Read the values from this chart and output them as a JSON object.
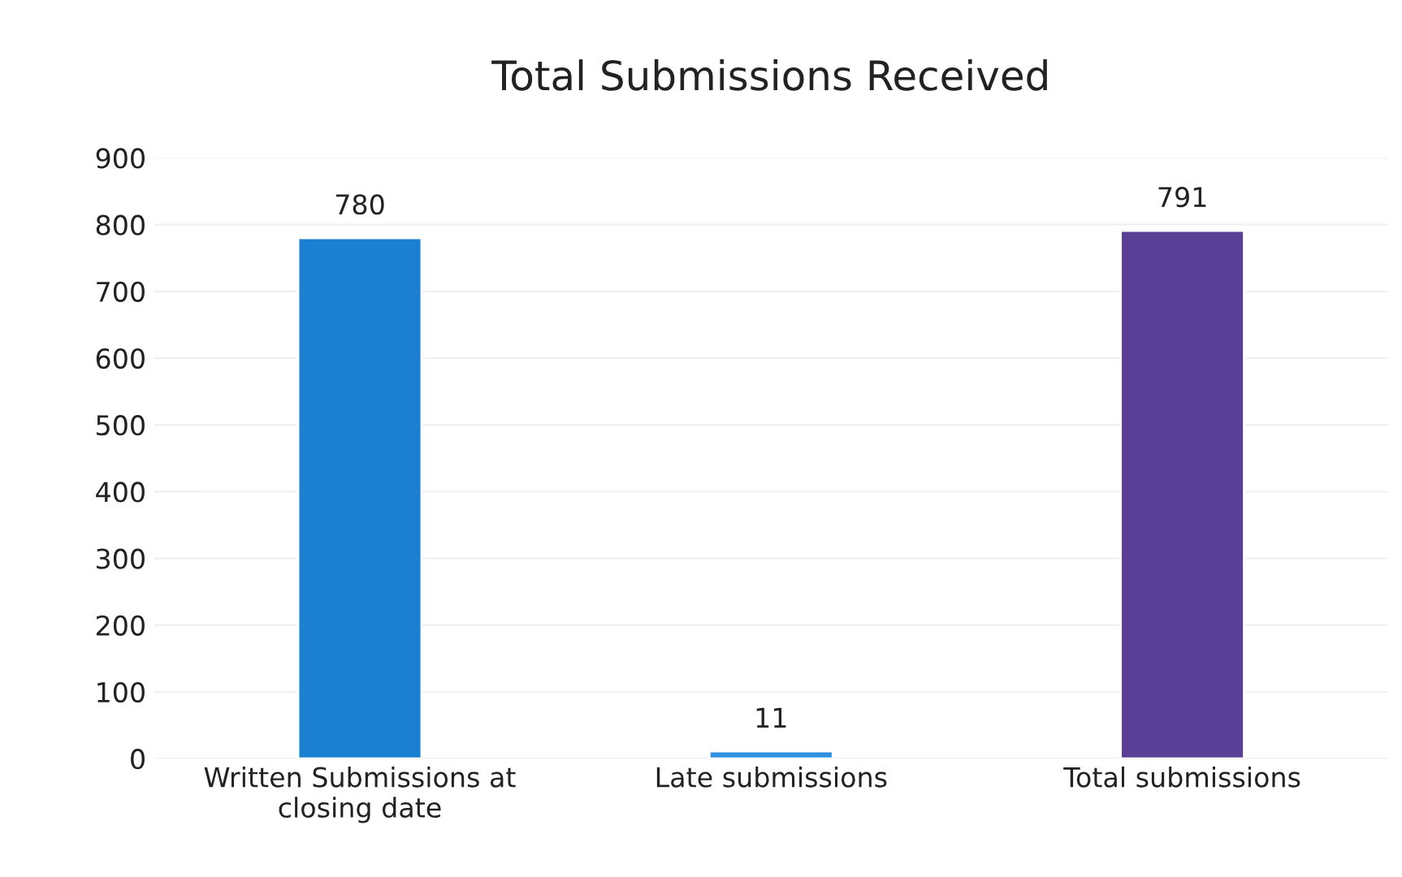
{
  "chart_data": {
    "type": "bar",
    "title": "Total Submissions Received",
    "categories": [
      "Written Submissions at\nclosing date",
      "Late submissions",
      "Total submissions"
    ],
    "values": [
      780,
      11,
      791
    ],
    "colors": [
      "#1b7fd2",
      "#2f8fe0",
      "#5a3f96"
    ],
    "ylim": [
      0,
      900
    ],
    "yticks": [
      0,
      100,
      200,
      300,
      400,
      500,
      600,
      700,
      800,
      900
    ],
    "grid": "y",
    "data_labels": true
  }
}
